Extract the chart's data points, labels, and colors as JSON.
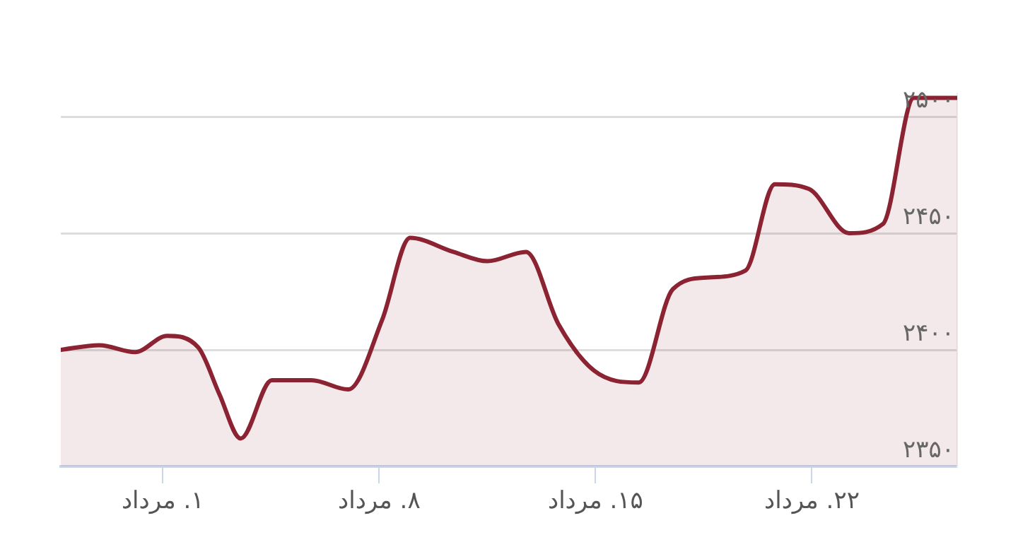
{
  "chart_data": {
    "type": "area",
    "x": [
      -2.3,
      -1.05,
      0.1,
      1.14,
      2.15,
      2.83,
      3.52,
      4.53,
      5.81,
      7.0,
      8.1,
      9.0,
      10.4,
      11.5,
      12.75,
      13.8,
      14.96,
      16.4,
      17.5,
      18.6,
      19.85,
      20.8,
      21.9,
      23.2,
      24.3,
      25.3,
      26.7
    ],
    "series": [
      {
        "color": "#8b2332",
        "values": [
          2400,
          2402,
          2399,
          2406,
          2401,
          2381,
          2362,
          2387,
          2387,
          2383,
          2413,
          2448,
          2442,
          2438,
          2442,
          2411,
          2391,
          2386,
          2426,
          2431,
          2434,
          2471,
          2469,
          2450,
          2454,
          2508,
          2508
        ]
      }
    ],
    "xlim": [
      -2.3,
      26.7
    ],
    "xticks": [
      {
        "value": 1,
        "label": "۱. مرداد"
      },
      {
        "value": 8,
        "label": "۸. مرداد"
      },
      {
        "value": 15,
        "label": "۱۵. مرداد"
      },
      {
        "value": 22,
        "label": "۲۲. مرداد"
      }
    ],
    "ylim": [
      2350,
      2510
    ],
    "yticks": [
      {
        "value": 2350,
        "label": "۲۳۵۰"
      },
      {
        "value": 2400,
        "label": "۲۴۰۰"
      },
      {
        "value": 2450,
        "label": "۲۴۵۰"
      },
      {
        "value": 2500,
        "label": "۲۵۰۰"
      }
    ],
    "grid": "y",
    "legend": false,
    "marker": "none",
    "line_style": "solid"
  }
}
